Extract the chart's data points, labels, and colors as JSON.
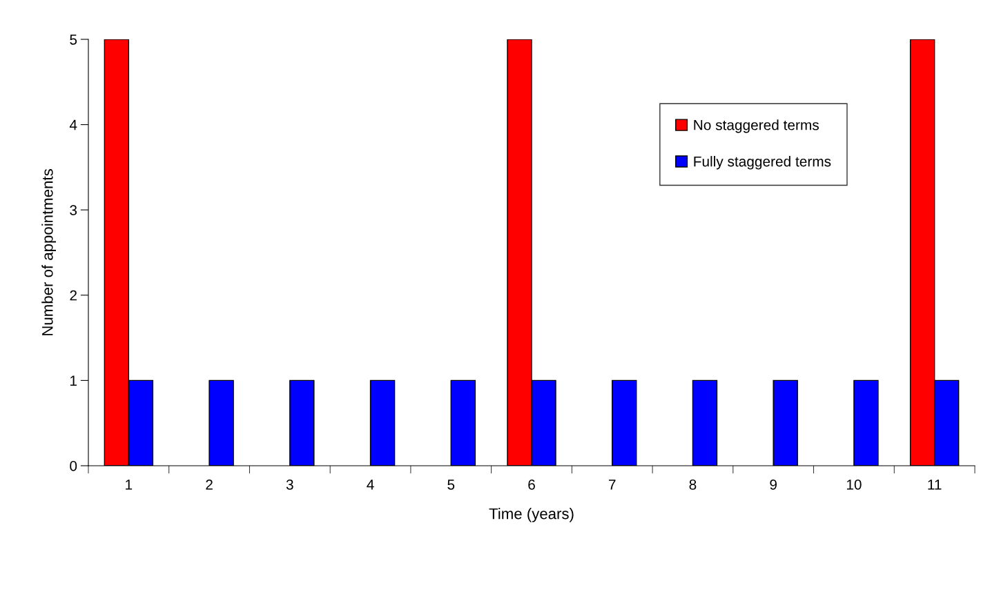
{
  "chart_data": {
    "type": "bar",
    "xlabel": "Time (years)",
    "ylabel": "Number of appointments",
    "categories": [
      "1",
      "2",
      "3",
      "4",
      "5",
      "6",
      "7",
      "8",
      "9",
      "10",
      "11"
    ],
    "series": [
      {
        "name": "No staggered terms",
        "color": "#ff0000",
        "values": [
          5,
          0,
          0,
          0,
          0,
          5,
          0,
          0,
          0,
          0,
          5
        ]
      },
      {
        "name": "Fully staggered terms",
        "color": "#0000ff",
        "values": [
          1,
          1,
          1,
          1,
          1,
          1,
          1,
          1,
          1,
          1,
          1
        ]
      }
    ],
    "ylim": [
      0,
      5
    ],
    "yticks": [
      0,
      1,
      2,
      3,
      4,
      5
    ],
    "grid": false,
    "legend": "top right"
  }
}
